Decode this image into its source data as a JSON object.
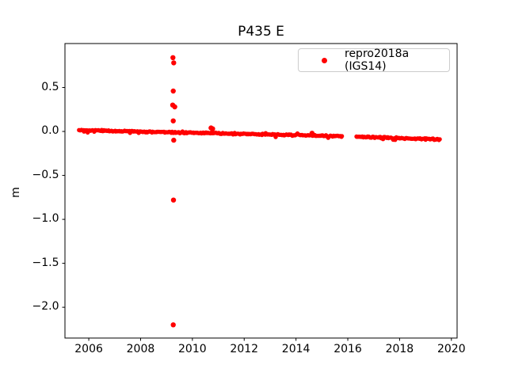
{
  "chart_data": {
    "type": "scatter",
    "title": "P435 E",
    "xlabel": "",
    "ylabel": "m",
    "grid": false,
    "xlim": [
      2005.08,
      2020.22
    ],
    "ylim": [
      -2.35,
      1.0
    ],
    "xticks": {
      "values": [
        2006,
        2008,
        2010,
        2012,
        2014,
        2016,
        2018,
        2020
      ],
      "labels": [
        "2006",
        "2008",
        "2010",
        "2012",
        "2014",
        "2016",
        "2018",
        "2020"
      ]
    },
    "yticks": {
      "values": [
        0.5,
        0.0,
        -0.5,
        -1.0,
        -1.5,
        -2.0
      ],
      "labels": [
        "0.5",
        "0.0",
        "−0.5",
        "−1.0",
        "−1.5",
        "−2.0"
      ]
    },
    "legend": {
      "position": "upper right",
      "entries": [
        {
          "label": "repro2018a (IGS14)",
          "color": "#ff0000",
          "marker": "dot"
        }
      ]
    },
    "series": [
      {
        "name": "repro2018a (IGS14)",
        "color": "#ff0000",
        "marker": ".",
        "band_segments": [
          {
            "x_start": 2005.62,
            "x_end": 2015.82,
            "y_start": 0.015,
            "y_end": -0.055
          },
          {
            "x_start": 2016.32,
            "x_end": 2019.58,
            "y_start": -0.06,
            "y_end": -0.09
          }
        ],
        "outliers": [
          [
            2009.25,
            0.84
          ],
          [
            2009.28,
            0.78
          ],
          [
            2009.26,
            0.46
          ],
          [
            2009.24,
            0.3
          ],
          [
            2009.32,
            0.28
          ],
          [
            2009.26,
            0.12
          ],
          [
            2009.28,
            -0.1
          ],
          [
            2009.27,
            -0.78
          ],
          [
            2009.26,
            -2.2
          ],
          [
            2010.72,
            0.04
          ],
          [
            2010.78,
            0.03
          ],
          [
            2014.62,
            -0.02
          ]
        ]
      }
    ],
    "colors": {
      "marker": "#ff0000",
      "axis": "#000000",
      "legend_border": "#cccccc",
      "background": "#ffffff"
    }
  }
}
